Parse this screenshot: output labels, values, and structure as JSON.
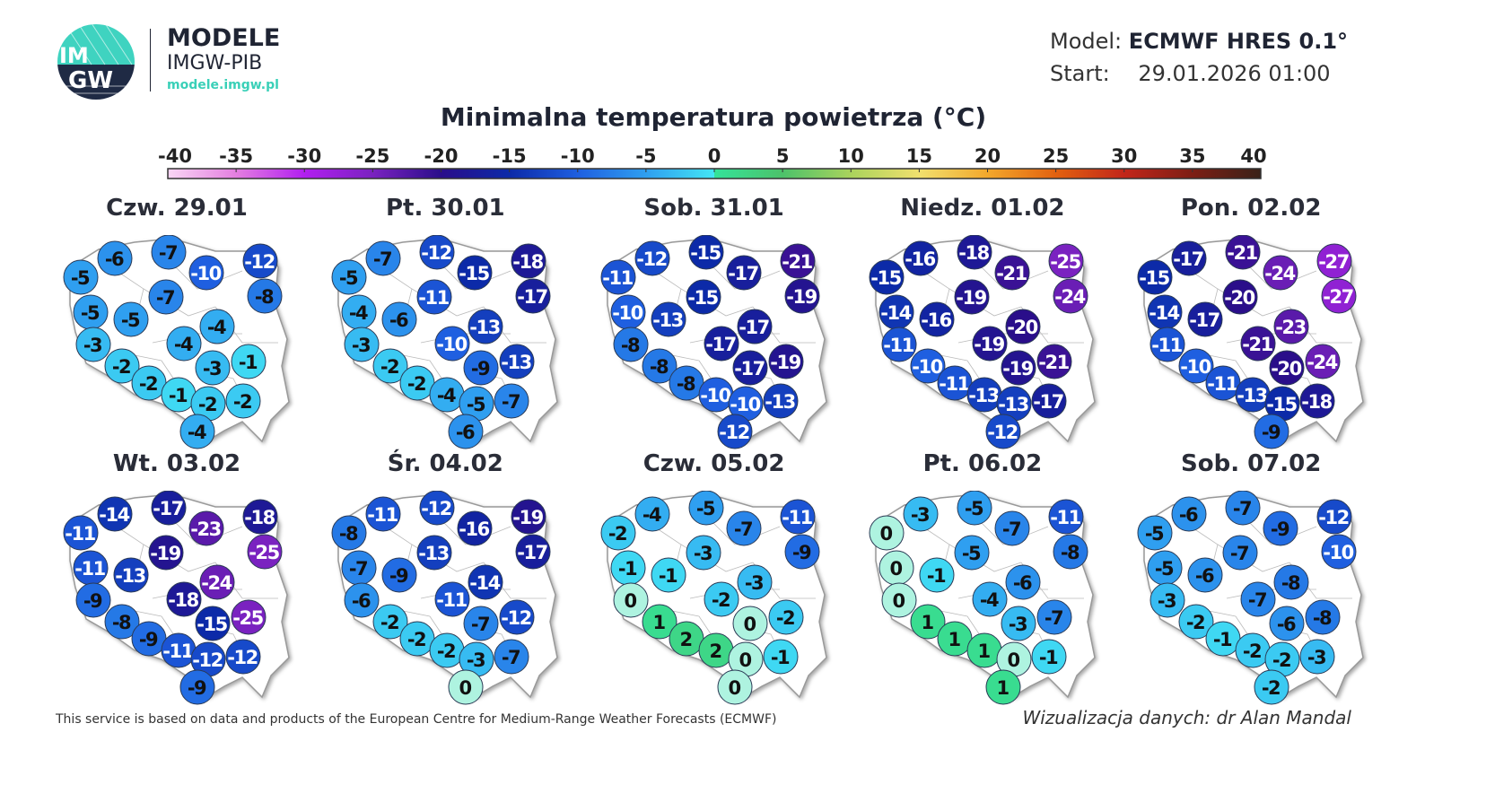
{
  "header": {
    "logo_text": "IMGW",
    "brand_title": "MODELE",
    "brand_subtitle": "IMGW-PIB",
    "brand_url": "modele.imgw.pl",
    "model_label": "Model:",
    "model_value": "ECMWF HRES 0.1°",
    "start_label": "Start:",
    "start_value": "29.01.2026 01:00"
  },
  "chart_data": {
    "type": "map-station-values",
    "title": "Minimalna temperatura powietrza (°C)",
    "colorbar": {
      "ticks": [
        -40,
        -35,
        -30,
        -25,
        -20,
        -15,
        -10,
        -5,
        0,
        5,
        10,
        15,
        20,
        25,
        30,
        35,
        40
      ],
      "range": [
        -40,
        40
      ],
      "colors": [
        "#f9d6f4",
        "#e47fe0",
        "#b11ff0",
        "#7a22c0",
        "#2a0e8a",
        "#0c2aa8",
        "#1f5fe0",
        "#2f9ff0",
        "#43e6f4",
        "#34e39a",
        "#4cc26a",
        "#aad35c",
        "#f1e06e",
        "#f3a82c",
        "#e2610f",
        "#c2261a",
        "#7d1e14",
        "#3a2218"
      ]
    },
    "days": [
      {
        "label": "Czw. 29.01",
        "values": [
          -5,
          -6,
          -7,
          -10,
          -12,
          -8,
          -5,
          -5,
          -7,
          -4,
          -4,
          -3,
          -2,
          -2,
          -1,
          -3,
          -1,
          -2,
          -2,
          -4
        ]
      },
      {
        "label": "Pt. 30.01",
        "values": [
          -5,
          -7,
          -12,
          -15,
          -18,
          -17,
          -4,
          -6,
          -11,
          -13,
          -10,
          -3,
          -2,
          -2,
          -4,
          -9,
          -13,
          -5,
          -7,
          -6
        ]
      },
      {
        "label": "Sob. 31.01",
        "values": [
          -11,
          -12,
          -15,
          -17,
          -21,
          -19,
          -10,
          -13,
          -15,
          -17,
          -17,
          -8,
          -8,
          -8,
          -10,
          -17,
          -19,
          -10,
          -13,
          -12
        ]
      },
      {
        "label": "Niedz. 01.02",
        "values": [
          -15,
          -16,
          -18,
          -21,
          -25,
          -24,
          -14,
          -16,
          -19,
          -20,
          -19,
          -11,
          -10,
          -11,
          -13,
          -19,
          -21,
          -13,
          -17,
          -12
        ]
      },
      {
        "label": "Pon. 02.02",
        "values": [
          -15,
          -17,
          -21,
          -24,
          -27,
          -27,
          -14,
          -17,
          -20,
          -23,
          -21,
          -11,
          -10,
          -11,
          -13,
          -20,
          -24,
          -15,
          -18,
          -9
        ]
      },
      {
        "label": "Wt. 03.02",
        "values": [
          -11,
          -14,
          -17,
          -23,
          -18,
          -25,
          -11,
          -13,
          -19,
          -24,
          -18,
          -9,
          -8,
          -9,
          -11,
          -15,
          -25,
          -12,
          -12,
          -9
        ]
      },
      {
        "label": "Śr. 04.02",
        "values": [
          -8,
          -11,
          -12,
          -16,
          -19,
          -17,
          -7,
          -9,
          -13,
          -14,
          -11,
          -6,
          -2,
          -2,
          -2,
          -7,
          -12,
          -3,
          -7,
          0
        ]
      },
      {
        "label": "Czw. 05.02",
        "values": [
          -2,
          -4,
          -5,
          -7,
          -11,
          -9,
          -1,
          -1,
          -3,
          -3,
          -2,
          0,
          1,
          2,
          2,
          0,
          -2,
          0,
          -1,
          0
        ]
      },
      {
        "label": "Pt. 06.02",
        "values": [
          0,
          -3,
          -5,
          -7,
          -11,
          -8,
          0,
          -1,
          -5,
          -6,
          -4,
          0,
          1,
          1,
          1,
          -3,
          -7,
          0,
          -1,
          1
        ]
      },
      {
        "label": "Sob. 07.02",
        "values": [
          -5,
          -6,
          -7,
          -9,
          -12,
          -10,
          -5,
          -6,
          -7,
          -8,
          -7,
          -3,
          -2,
          -1,
          -2,
          -6,
          -8,
          -2,
          -3,
          -2
        ]
      }
    ]
  },
  "footer": {
    "source": "This service is based on data and products of the European Centre for Medium-Range Weather Forecasts (ECMWF)",
    "credit": "Wizualizacja danych: dr Alan Mandal"
  }
}
